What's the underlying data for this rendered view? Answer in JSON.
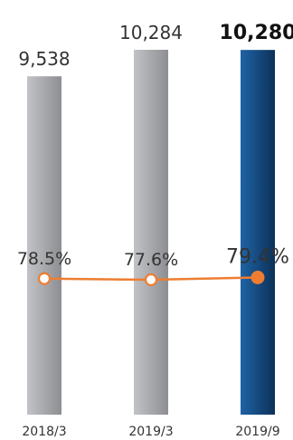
{
  "chart_data": {
    "type": "bar",
    "categories": [
      "2018/3",
      "2019/3",
      "2019/9"
    ],
    "series": [
      {
        "kind": "bar",
        "values": [
          9538,
          10284,
          10280
        ],
        "labels": [
          "9,538",
          "10,284",
          "10,280"
        ]
      },
      {
        "kind": "line",
        "values": [
          78.5,
          77.6,
          79.4
        ],
        "labels": [
          "78.5%",
          "77.6%",
          "79.4%"
        ]
      }
    ],
    "highlight_index": 2,
    "colors": {
      "bar_gray_light": "#c2c3c6",
      "bar_gray_dark": "#8d8e92",
      "bar_blue_light": "#1f63a6",
      "bar_blue_dark": "#0b3157",
      "line": "#ee7d31",
      "marker_fill": "#ffffff"
    }
  }
}
